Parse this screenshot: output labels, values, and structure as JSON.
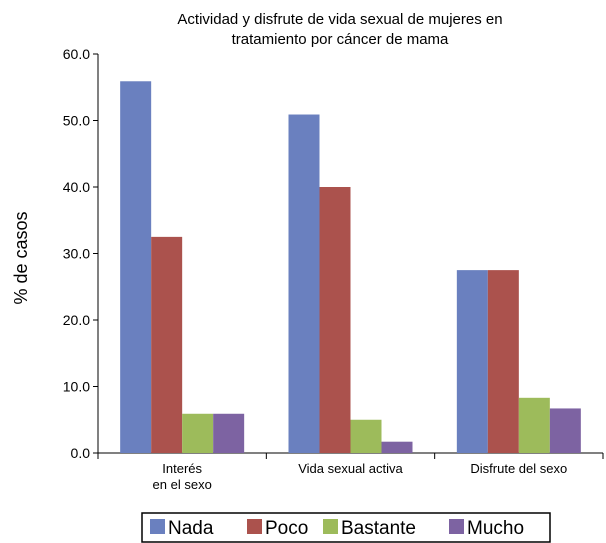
{
  "chart_data": {
    "type": "bar",
    "title_lines": [
      "Actividad y disfrute de vida sexual de mujeres en",
      "tratamiento por cáncer de mama"
    ],
    "xlabel": "",
    "ylabel": "% de casos",
    "ylim": [
      0,
      60
    ],
    "yticks": [
      "0.0",
      "10.0",
      "20.0",
      "30.0",
      "40.0",
      "50.0",
      "60.0"
    ],
    "categories": [
      {
        "lines": [
          "Interés",
          "en el sexo"
        ]
      },
      {
        "lines": [
          "Vida sexual activa"
        ]
      },
      {
        "lines": [
          "Disfrute del sexo"
        ]
      }
    ],
    "series": [
      {
        "name": "Nada",
        "color": "#6a80bf",
        "values": [
          55.9,
          50.9,
          27.5
        ]
      },
      {
        "name": "Poco",
        "color": "#ab524d",
        "values": [
          32.5,
          40.0,
          27.5
        ]
      },
      {
        "name": "Bastante",
        "color": "#9dbb5b",
        "values": [
          5.9,
          5.0,
          8.3
        ]
      },
      {
        "name": "Mucho",
        "color": "#7d63a2",
        "values": [
          5.9,
          1.7,
          6.7
        ]
      }
    ],
    "legend_position": "bottom",
    "grid": false
  }
}
